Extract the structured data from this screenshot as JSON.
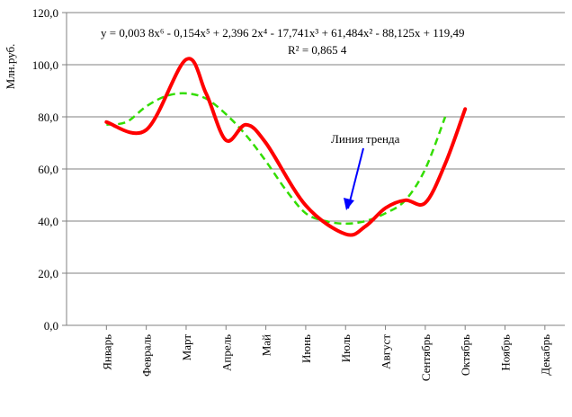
{
  "chart_data": {
    "type": "line",
    "ylabel": "Млн.руб.",
    "xlabel": "",
    "ylim": [
      0,
      120
    ],
    "ytick_step": 20,
    "ytick_labels": [
      "0,0",
      "20,0",
      "40,0",
      "60,0",
      "80,0",
      "100,0",
      "120,0"
    ],
    "grid": "horizontal",
    "categories": [
      "Январь",
      "Февраль",
      "Март",
      "Апрель",
      "Май",
      "Июнь",
      "Июль",
      "Август",
      "Сентябрь",
      "Октябрь",
      "Ноябрь",
      "Декабрь"
    ],
    "series": [
      {
        "style": "solid",
        "color": "#ff0000",
        "values": [
          78,
          75,
          102,
          89,
          71,
          77,
          70,
          46,
          35,
          38,
          45,
          48,
          47,
          62,
          83
        ],
        "x": [
          0.5,
          1.5,
          2.5,
          3.0,
          3.5,
          4.0,
          4.5,
          5.5,
          6.5,
          7.0,
          7.5,
          8.0,
          8.5,
          9.0,
          9.5
        ]
      },
      {
        "style": "dashed",
        "color": "#33dd00",
        "trend": true,
        "fit_x": [
          1,
          1.5,
          2,
          2.5,
          3,
          3.5,
          4,
          4.5,
          5,
          5.5,
          6,
          6.5,
          7,
          7.5,
          8,
          8.5,
          9,
          9.5
        ],
        "fit_y": [
          77,
          78,
          84,
          88,
          89,
          87,
          81,
          73,
          63,
          52,
          43,
          40,
          39,
          40,
          43,
          48,
          60,
          80
        ]
      }
    ],
    "trend_equation": "y = 0,003 8x⁶ - 0,154x⁵ + 2,396 2x⁴ - 17,741x³ + 61,484x² - 88,125x + 119,49",
    "r_squared": "R² = 0,865 4",
    "annotation": "Линия тренда"
  },
  "colors": {
    "actual_line": "#ff0000",
    "trend_line": "#33dd00",
    "arrow": "#0000ff",
    "grid": "#808080",
    "axis": "#808080"
  }
}
